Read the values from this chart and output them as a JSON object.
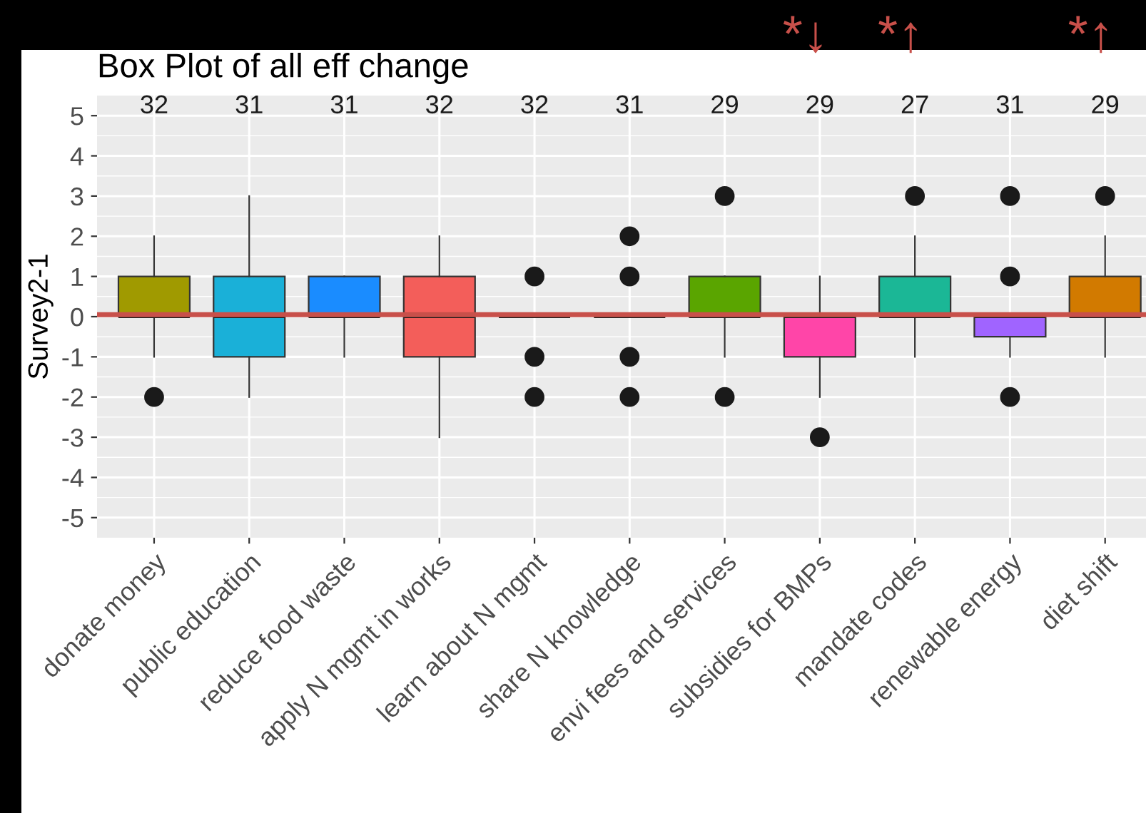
{
  "chart_data": {
    "type": "box",
    "title": "Box Plot of all eff change",
    "ylabel": "Survey2-1",
    "categories": [
      "donate money",
      "public education",
      "reduce food waste",
      "apply N mgmt in works",
      "learn about N mgmt",
      "share N knowledge",
      "envi fees and services",
      "subsidies for BMPs",
      "mandate codes",
      "renewable energy",
      "diet shift"
    ],
    "colors": [
      "#a09a00",
      "#1ab0d8",
      "#1a8cff",
      "#f35e5a",
      null,
      null,
      "#5aa500",
      "#ff45a8",
      "#1bb796",
      "#a064ff",
      "#d27a00"
    ],
    "boxes": [
      {
        "low": -1,
        "q1": 0,
        "median": 0,
        "q3": 1,
        "high": 2,
        "outliers": [
          -2
        ]
      },
      {
        "low": -2,
        "q1": -1,
        "median": 0,
        "q3": 1,
        "high": 3
      },
      {
        "low": -1,
        "q1": 0,
        "median": 0,
        "q3": 1,
        "high": 1
      },
      {
        "low": -3,
        "q1": -1,
        "median": 0,
        "q3": 1,
        "high": 2
      },
      {
        "low": 0,
        "q1": 0,
        "median": 0,
        "q3": 0,
        "high": 0,
        "outliers": [
          1,
          -1,
          -2
        ]
      },
      {
        "low": 0,
        "q1": 0,
        "median": 0,
        "q3": 0,
        "high": 0,
        "outliers": [
          2,
          1,
          -1,
          -2
        ]
      },
      {
        "low": -1,
        "q1": 0,
        "median": 0,
        "q3": 1,
        "high": 1,
        "outliers": [
          3,
          -2
        ]
      },
      {
        "low": -2,
        "q1": -1,
        "median": 0,
        "q3": 0,
        "high": 1,
        "outliers": [
          -3
        ]
      },
      {
        "low": -1,
        "q1": 0,
        "median": 0,
        "q3": 1,
        "high": 2,
        "outliers": [
          3
        ]
      },
      {
        "low": -1,
        "q1": -0.5,
        "median": 0,
        "q3": 0,
        "high": 0,
        "outliers": [
          3,
          1,
          -2
        ]
      },
      {
        "low": -1,
        "q1": 0,
        "median": 0,
        "q3": 1,
        "high": 2,
        "outliers": [
          3
        ]
      }
    ],
    "ylim": [
      -5.5,
      5.5
    ],
    "yticks": [
      -5,
      -4,
      -3,
      -2,
      -1,
      0,
      1,
      2,
      3,
      4,
      5
    ],
    "grid": true,
    "ref_lines": [
      {
        "axis": "y",
        "value": 0.05,
        "color": "#c8504a"
      }
    ],
    "annotations": [
      "32",
      "31",
      "31",
      "32",
      "32",
      "31",
      "29",
      "29",
      "27",
      "31",
      "29",
      "*↓",
      "*↑",
      "*↑"
    ]
  }
}
